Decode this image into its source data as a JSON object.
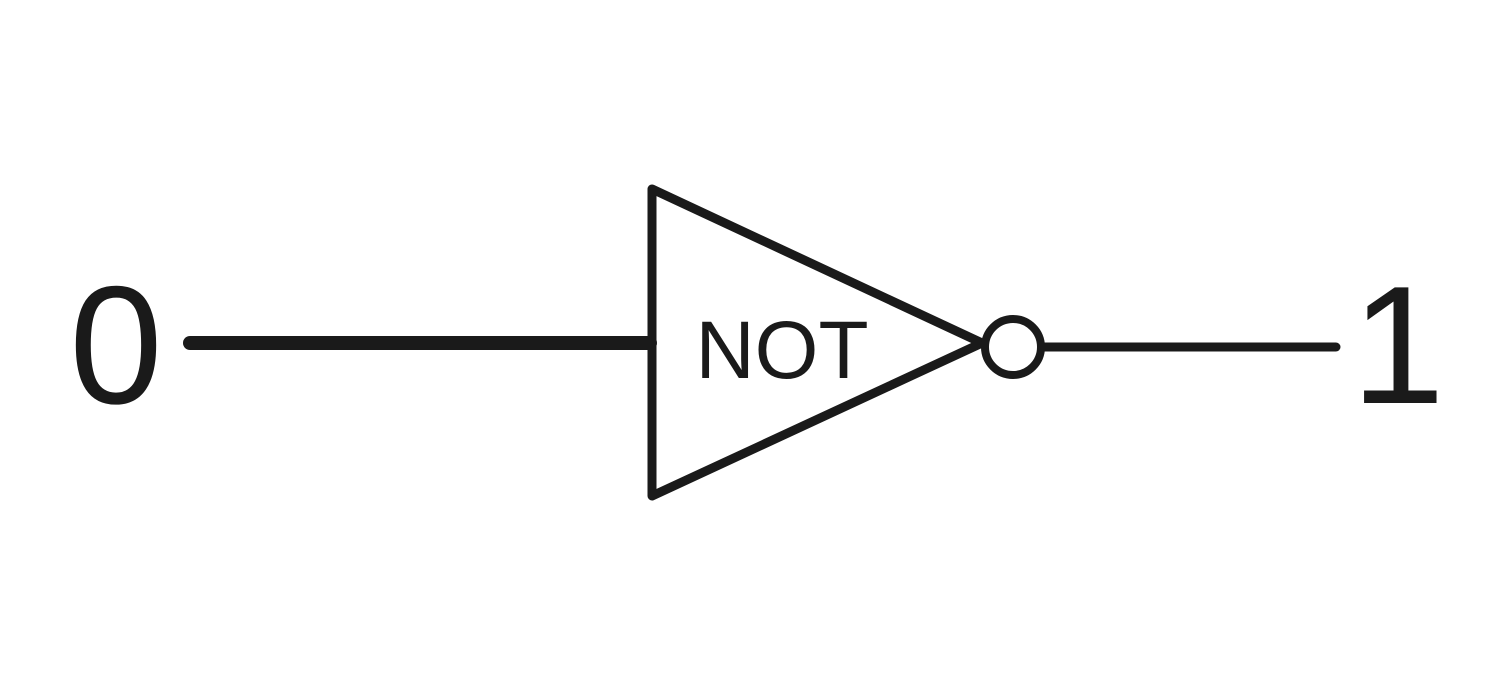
{
  "colors": {
    "background": "#ffffff",
    "ink": "#1a1a1a"
  },
  "gate": {
    "label": "NOT"
  },
  "input": {
    "value": "0"
  },
  "output": {
    "value": "1"
  }
}
